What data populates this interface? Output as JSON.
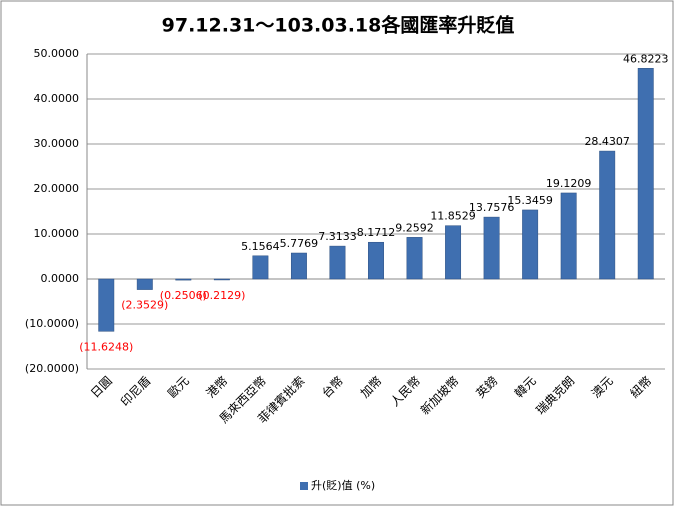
{
  "chart_data": {
    "type": "bar",
    "title": "97.12.31～103.03.18各國匯率升貶值",
    "categories": [
      "日圓",
      "印尼盾",
      "歐元",
      "港幣",
      "馬來西亞幣",
      "菲律賓批索",
      "台幣",
      "加幣",
      "人民幣",
      "新加坡幣",
      "英鎊",
      "韓元",
      "瑞典克朗",
      "澳元",
      "紐幣"
    ],
    "series": [
      {
        "name": "升(貶)值 (%)",
        "color": "#3f6fb0",
        "values": [
          -11.6248,
          -2.3529,
          -0.2506,
          -0.2129,
          5.1564,
          5.7769,
          7.3133,
          8.1712,
          9.2592,
          11.8529,
          13.7576,
          15.3459,
          19.1209,
          28.4307,
          46.8223
        ],
        "value_labels": [
          "(11.6248)",
          "(2.3529)",
          "(0.2506)",
          "(0.2129)",
          "5.1564",
          "5.7769",
          "7.3133",
          "8.1712",
          "9.2592",
          "11.8529",
          "13.7576",
          "15.3459",
          "19.1209",
          "28.4307",
          "46.8223"
        ]
      }
    ],
    "negative_label_color": "#ff0000",
    "ylim": [
      -20,
      50
    ],
    "yticks": [
      {
        "value": -20,
        "label": "(20.0000)"
      },
      {
        "value": -10,
        "label": "(10.0000)"
      },
      {
        "value": 0,
        "label": "0.0000"
      },
      {
        "value": 10,
        "label": "10.0000"
      },
      {
        "value": 20,
        "label": "20.0000"
      },
      {
        "value": 30,
        "label": "30.0000"
      },
      {
        "value": 40,
        "label": "40.0000"
      },
      {
        "value": 50,
        "label": "50.0000"
      }
    ],
    "grid": true,
    "legend": "bottom"
  }
}
